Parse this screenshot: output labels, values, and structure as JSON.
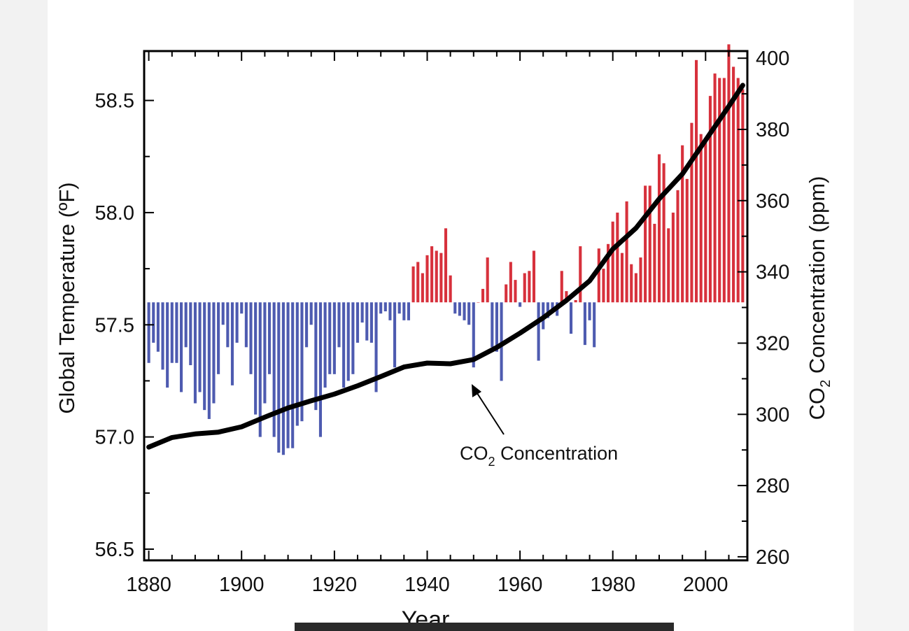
{
  "chart_data": {
    "type": "bar",
    "title": "",
    "xlabel": "Year",
    "ylabel_left": "Global Temperature (ºF)",
    "ylabel_right": {
      "prefix": "CO",
      "sub": "2",
      "suffix": " Concentration (ppm)"
    },
    "xlim": [
      1879,
      2009
    ],
    "ylim_left": [
      56.45,
      58.72
    ],
    "ylim_right": [
      259,
      402
    ],
    "baseline": 57.6,
    "x_ticks": [
      1880,
      1900,
      1920,
      1940,
      1960,
      1980,
      2000
    ],
    "y_left_ticks": [
      "56.5",
      "57.0",
      "57.5",
      "58.0",
      "58.5"
    ],
    "y_right_ticks": [
      260,
      280,
      300,
      320,
      340,
      360,
      380,
      400
    ],
    "colors": {
      "above": "#d7313c",
      "below": "#4e5bb0",
      "line": "#000000"
    },
    "series": [
      {
        "name": "Global Temperature",
        "x": [
          1880,
          1881,
          1882,
          1883,
          1884,
          1885,
          1886,
          1887,
          1888,
          1889,
          1890,
          1891,
          1892,
          1893,
          1894,
          1895,
          1896,
          1897,
          1898,
          1899,
          1900,
          1901,
          1902,
          1903,
          1904,
          1905,
          1906,
          1907,
          1908,
          1909,
          1910,
          1911,
          1912,
          1913,
          1914,
          1915,
          1916,
          1917,
          1918,
          1919,
          1920,
          1921,
          1922,
          1923,
          1924,
          1925,
          1926,
          1927,
          1928,
          1929,
          1930,
          1931,
          1932,
          1933,
          1934,
          1935,
          1936,
          1937,
          1938,
          1939,
          1940,
          1941,
          1942,
          1943,
          1944,
          1945,
          1946,
          1947,
          1948,
          1949,
          1950,
          1951,
          1952,
          1953,
          1954,
          1955,
          1956,
          1957,
          1958,
          1959,
          1960,
          1961,
          1962,
          1963,
          1964,
          1965,
          1966,
          1967,
          1968,
          1969,
          1970,
          1971,
          1972,
          1973,
          1974,
          1975,
          1976,
          1977,
          1978,
          1979,
          1980,
          1981,
          1982,
          1983,
          1984,
          1985,
          1986,
          1987,
          1988,
          1989,
          1990,
          1991,
          1992,
          1993,
          1994,
          1995,
          1996,
          1997,
          1998,
          1999,
          2000,
          2001,
          2002,
          2003,
          2004,
          2005,
          2006,
          2007,
          2008
        ],
        "values": [
          57.33,
          57.42,
          57.38,
          57.3,
          57.22,
          57.33,
          57.33,
          57.2,
          57.4,
          57.32,
          57.15,
          57.2,
          57.12,
          57.08,
          57.15,
          57.28,
          57.5,
          57.4,
          57.23,
          57.42,
          57.55,
          57.4,
          57.28,
          57.1,
          57.0,
          57.15,
          57.28,
          57.0,
          56.93,
          56.92,
          56.95,
          56.95,
          57.05,
          57.07,
          57.4,
          57.5,
          57.12,
          57.0,
          57.22,
          57.28,
          57.28,
          57.4,
          57.22,
          57.25,
          57.28,
          57.42,
          57.51,
          57.43,
          57.42,
          57.2,
          57.55,
          57.56,
          57.52,
          57.31,
          57.55,
          57.52,
          57.52,
          57.76,
          57.78,
          57.73,
          57.81,
          57.85,
          57.83,
          57.82,
          57.93,
          57.72,
          57.55,
          57.54,
          57.52,
          57.5,
          57.31,
          57.6,
          57.66,
          57.8,
          57.4,
          57.38,
          57.25,
          57.68,
          57.78,
          57.7,
          57.58,
          57.73,
          57.74,
          57.83,
          57.34,
          57.48,
          57.53,
          57.56,
          57.54,
          57.74,
          57.65,
          57.46,
          57.61,
          57.85,
          57.41,
          57.52,
          57.4,
          57.84,
          57.75,
          57.86,
          57.96,
          58.0,
          57.82,
          58.05,
          57.77,
          57.73,
          57.8,
          58.12,
          58.12,
          57.95,
          58.26,
          58.22,
          57.93,
          58.0,
          58.1,
          58.3,
          58.15,
          58.4,
          58.68,
          58.35,
          58.32,
          58.52,
          58.62,
          58.6,
          58.6,
          58.75,
          58.65,
          58.6,
          58.55
        ]
      },
      {
        "name": "CO₂ Concentration",
        "x": [
          1880,
          1885,
          1890,
          1895,
          1900,
          1905,
          1910,
          1915,
          1920,
          1925,
          1930,
          1935,
          1940,
          1945,
          1950,
          1955,
          1960,
          1965,
          1970,
          1975,
          1980,
          1985,
          1990,
          1995,
          2000,
          2005,
          2008
        ],
        "values": [
          290.8,
          293.5,
          294.5,
          295,
          296.5,
          299.2,
          301.8,
          303.8,
          305.7,
          308,
          310.6,
          313.3,
          314.4,
          314.2,
          315.4,
          318.8,
          322.8,
          327.1,
          332,
          337.5,
          346.4,
          352.3,
          360.5,
          367.5,
          377,
          386.5,
          392.4
        ]
      }
    ],
    "annotations": [
      {
        "prefix": "CO",
        "sub": "2",
        "suffix": " Concentration"
      }
    ]
  }
}
